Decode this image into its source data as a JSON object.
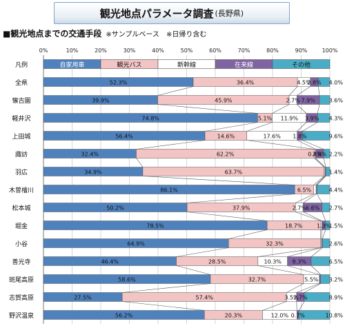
{
  "header": {
    "title": "観光地点パラメータ調査",
    "title_sub": "(長野県)"
  },
  "subtitle": {
    "main": "■観光地点までの交通手段",
    "note1": "※サンプルベース",
    "note2": "※日帰り含む"
  },
  "chart_data": {
    "type": "bar",
    "orientation": "horizontal",
    "stacked": "percent",
    "legend_row_label": "凡例",
    "legend_placement": "top",
    "xlim": [
      0,
      100
    ],
    "x_ticks": [
      "0%",
      "10%",
      "20%",
      "30%",
      "40%",
      "50%",
      "60%",
      "70%",
      "80%",
      "90%",
      "100%"
    ],
    "categories": [
      "全県",
      "懐古園",
      "軽井沢",
      "上田城",
      "諏訪",
      "羽広",
      "木曽檜川",
      "松本城",
      "堀金",
      "小谷",
      "善光寺",
      "斑尾高原",
      "志賀高原",
      "野沢温泉"
    ],
    "series": [
      {
        "name": "自家用車",
        "color": "#4f81bd",
        "values": [
          52.3,
          39.9,
          74.8,
          56.4,
          32.4,
          34.9,
          86.1,
          50.2,
          78.5,
          64.9,
          46.4,
          58.6,
          27.5,
          56.2
        ],
        "labels": [
          "52.3%",
          "39.9%",
          "74.8%",
          "56.4%",
          "32.4%",
          "34.9%",
          "86.1%",
          "50.2%",
          "78.5%",
          "64.9%",
          "46.4%",
          "58.6%",
          "27.5%",
          "56.2%"
        ]
      },
      {
        "name": "観光バス",
        "color": "#f2c4c4",
        "values": [
          36.4,
          45.9,
          5.1,
          14.6,
          62.2,
          63.7,
          6.5,
          37.9,
          18.7,
          32.3,
          28.5,
          32.7,
          57.4,
          20.3
        ],
        "labels": [
          "36.4%",
          "45.9%",
          "5.1%",
          "14.6%",
          "62.2%",
          "63.7%",
          "6.5%",
          "37.9%",
          "18.7%",
          "32.3%",
          "28.5%",
          "32.7%",
          "57.4%",
          "20.3%"
        ]
      },
      {
        "name": "新幹線",
        "color": "#ffffff",
        "values": [
          4.5,
          2.7,
          11.9,
          17.6,
          0.4,
          0.3,
          0.8,
          2.7,
          0.5,
          0.3,
          10.3,
          5.5,
          3.5,
          12.0
        ],
        "labels": [
          "4.5%",
          "2.7%",
          "11.9%",
          "17.6%",
          "0.4%",
          "",
          "",
          "2.7%",
          "",
          "",
          "10.3%",
          "5.5%",
          "3.5%",
          "12.0%"
        ]
      },
      {
        "name": "在来線",
        "color": "#8064a2",
        "values": [
          2.8,
          7.9,
          3.9,
          1.8,
          2.8,
          0.3,
          0.3,
          6.6,
          1.3,
          0.3,
          8.3,
          0.5,
          2.7,
          0.7
        ],
        "labels": [
          "2.8%",
          "7.9%",
          "3.9%",
          "1.8%",
          "2.8%",
          "",
          "",
          "6.6%",
          "1.3%",
          "",
          "8.3%",
          "",
          "2.7%",
          "0.7%"
        ]
      },
      {
        "name": "その他",
        "color": "#4bacc6",
        "values": [
          4.0,
          3.6,
          4.3,
          9.6,
          2.2,
          1.4,
          4.4,
          2.7,
          1.5,
          2.6,
          6.5,
          3.2,
          8.9,
          10.8
        ],
        "labels": [
          "4.0%",
          "3.6%",
          "4.3%",
          "9.6%",
          "2.2%",
          "1.4%",
          "4.4%",
          "2.7%",
          "1.5%",
          "2.6%",
          "6.5%",
          "3.2%",
          "8.9%",
          "10.8%"
        ]
      }
    ]
  }
}
